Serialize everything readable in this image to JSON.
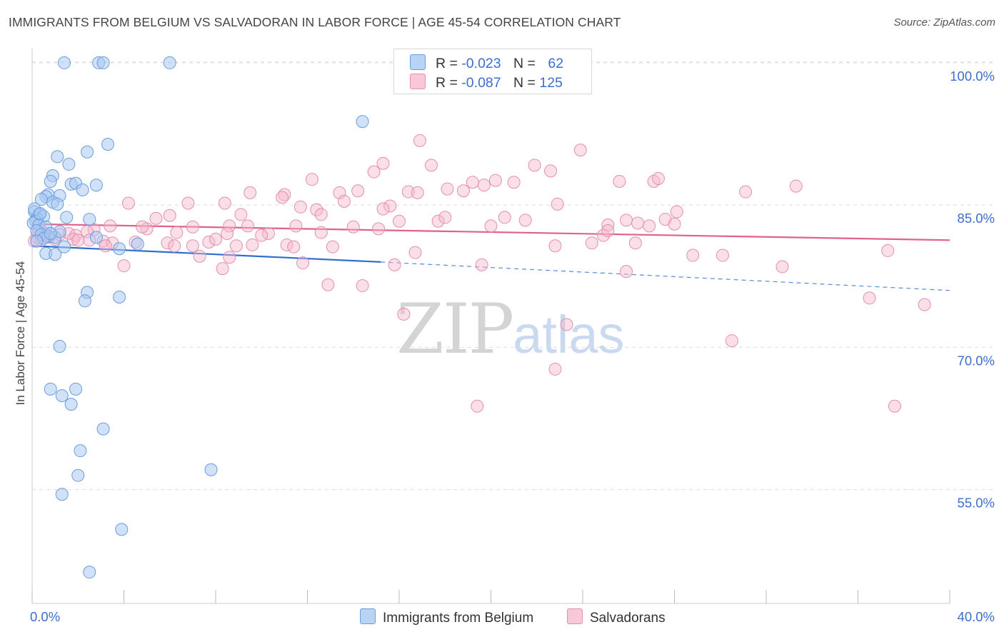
{
  "header": {
    "title": "IMMIGRANTS FROM BELGIUM VS SALVADORAN IN LABOR FORCE | AGE 45-54 CORRELATION CHART",
    "source": "Source: ZipAtlas.com"
  },
  "legend": {
    "rows": [
      {
        "r_label": "R =",
        "r_value": "-0.023",
        "n_label": "N =",
        "n_value": "62"
      },
      {
        "r_label": "R =",
        "r_value": "-0.087",
        "n_label": "N =",
        "n_value": "125"
      }
    ]
  },
  "watermark": {
    "zip": "ZIP",
    "atlas": "atlas"
  },
  "colors": {
    "blue_fill": "#a9c8f2",
    "blue_stroke": "#6a9de0",
    "blue_line": "#2d6fcf",
    "pink_fill": "#f5b8cd",
    "pink_stroke": "#e58fae",
    "pink_line": "#e0608e",
    "tick_label": "#3b6fd0",
    "grid": "#dddddd"
  },
  "chart_data": {
    "type": "scatter",
    "title": "IMMIGRANTS FROM BELGIUM VS SALVADORAN IN LABOR FORCE | AGE 45-54 CORRELATION CHART",
    "xlabel": "",
    "ylabel": "In Labor Force | Age 45-54",
    "xlim": [
      0,
      40
    ],
    "ylim": [
      43,
      101.5
    ],
    "x_tick_labels": [
      "0.0%",
      "40.0%"
    ],
    "y_ticks": [
      55,
      70,
      85,
      100
    ],
    "y_tick_labels": [
      "55.0%",
      "70.0%",
      "85.0%",
      "100.0%"
    ],
    "grid": true,
    "legend_position": "top-center",
    "series": [
      {
        "name": "Immigrants from Belgium",
        "color": "#a9c8f2",
        "trend": {
          "x0": 0,
          "y0": 80.7,
          "x1": 15.2,
          "y1": 79.0,
          "dashed_to_x": 40,
          "dashed_to_y": 76.0
        },
        "points": [
          [
            1.4,
            100
          ],
          [
            2.9,
            100
          ],
          [
            3.1,
            100
          ],
          [
            6.0,
            100
          ],
          [
            14.4,
            93.8
          ],
          [
            3.3,
            91.4
          ],
          [
            2.4,
            90.6
          ],
          [
            1.1,
            90.1
          ],
          [
            1.6,
            89.3
          ],
          [
            0.9,
            88.1
          ],
          [
            0.8,
            87.5
          ],
          [
            1.7,
            87.2
          ],
          [
            1.9,
            87.3
          ],
          [
            2.8,
            87.1
          ],
          [
            2.2,
            86.6
          ],
          [
            0.7,
            86.1
          ],
          [
            0.6,
            85.9
          ],
          [
            1.2,
            86.0
          ],
          [
            0.4,
            85.6
          ],
          [
            0.9,
            85.3
          ],
          [
            1.1,
            85.1
          ],
          [
            0.1,
            84.3
          ],
          [
            0.3,
            84.0
          ],
          [
            0.5,
            83.8
          ],
          [
            0.2,
            83.6
          ],
          [
            1.5,
            83.7
          ],
          [
            0.15,
            83.3
          ],
          [
            0.05,
            83.1
          ],
          [
            2.5,
            83.5
          ],
          [
            0.3,
            82.9
          ],
          [
            0.6,
            82.7
          ],
          [
            0.2,
            82.3
          ],
          [
            0.4,
            81.9
          ],
          [
            0.7,
            81.7
          ],
          [
            0.5,
            81.5
          ],
          [
            1.0,
            81.6
          ],
          [
            2.8,
            81.6
          ],
          [
            4.6,
            80.9
          ],
          [
            1.4,
            80.6
          ],
          [
            3.8,
            80.4
          ],
          [
            0.6,
            79.9
          ],
          [
            1.0,
            79.8
          ],
          [
            2.4,
            75.8
          ],
          [
            3.8,
            75.3
          ],
          [
            2.3,
            74.9
          ],
          [
            1.2,
            70.1
          ],
          [
            0.8,
            65.6
          ],
          [
            1.9,
            65.6
          ],
          [
            1.3,
            64.9
          ],
          [
            1.7,
            64.0
          ],
          [
            3.1,
            61.4
          ],
          [
            2.1,
            59.1
          ],
          [
            7.8,
            57.1
          ],
          [
            2.0,
            56.5
          ],
          [
            1.3,
            54.5
          ],
          [
            3.9,
            50.8
          ],
          [
            2.5,
            46.3
          ],
          [
            0.1,
            84.6
          ],
          [
            0.35,
            84.1
          ],
          [
            0.2,
            81.2
          ],
          [
            1.2,
            82.2
          ],
          [
            0.8,
            82.0
          ]
        ]
      },
      {
        "name": "Salvadorans",
        "color": "#f5b8cd",
        "trend": {
          "x0": 0,
          "y0": 83.0,
          "x1": 40,
          "y1": 81.3
        },
        "points": [
          [
            16.9,
            91.8
          ],
          [
            23.9,
            90.8
          ],
          [
            15.3,
            89.4
          ],
          [
            17.4,
            89.2
          ],
          [
            21.9,
            89.2
          ],
          [
            22.6,
            88.6
          ],
          [
            14.9,
            88.5
          ],
          [
            12.2,
            87.7
          ],
          [
            19.2,
            87.4
          ],
          [
            20.2,
            87.6
          ],
          [
            21.0,
            87.4
          ],
          [
            19.7,
            87.1
          ],
          [
            18.1,
            86.7
          ],
          [
            18.8,
            86.5
          ],
          [
            13.4,
            86.3
          ],
          [
            14.2,
            86.5
          ],
          [
            11.0,
            86.1
          ],
          [
            10.9,
            85.8
          ],
          [
            9.5,
            86.3
          ],
          [
            13.6,
            85.4
          ],
          [
            16.4,
            86.4
          ],
          [
            16.8,
            86.3
          ],
          [
            25.6,
            87.5
          ],
          [
            27.1,
            87.5
          ],
          [
            27.3,
            87.8
          ],
          [
            31.1,
            86.4
          ],
          [
            33.3,
            87.0
          ],
          [
            8.4,
            85.2
          ],
          [
            4.2,
            85.2
          ],
          [
            6.8,
            85.2
          ],
          [
            15.6,
            84.9
          ],
          [
            15.3,
            84.6
          ],
          [
            11.7,
            84.8
          ],
          [
            12.4,
            84.5
          ],
          [
            22.9,
            85.1
          ],
          [
            9.1,
            84.0
          ],
          [
            6.0,
            83.9
          ],
          [
            5.4,
            83.6
          ],
          [
            12.6,
            84.0
          ],
          [
            16.0,
            83.3
          ],
          [
            17.7,
            83.3
          ],
          [
            20.6,
            83.7
          ],
          [
            21.5,
            83.4
          ],
          [
            25.9,
            83.4
          ],
          [
            26.4,
            83.1
          ],
          [
            27.6,
            83.5
          ],
          [
            26.9,
            82.8
          ],
          [
            28.0,
            83.0
          ],
          [
            28.1,
            84.3
          ],
          [
            25.1,
            82.9
          ],
          [
            20.0,
            82.8
          ],
          [
            14.0,
            82.7
          ],
          [
            11.5,
            82.8
          ],
          [
            8.6,
            82.8
          ],
          [
            7.0,
            82.7
          ],
          [
            5.0,
            82.5
          ],
          [
            3.4,
            82.8
          ],
          [
            2.7,
            82.4
          ],
          [
            2.4,
            82.2
          ],
          [
            0.8,
            82.0
          ],
          [
            1.6,
            82.0
          ],
          [
            1.9,
            81.8
          ],
          [
            0.6,
            81.8
          ],
          [
            0.2,
            81.6
          ],
          [
            1.0,
            81.4
          ],
          [
            1.8,
            81.4
          ],
          [
            2.5,
            81.3
          ],
          [
            3.1,
            81.2
          ],
          [
            3.5,
            81.0
          ],
          [
            4.5,
            81.1
          ],
          [
            6.3,
            82.1
          ],
          [
            5.9,
            81.0
          ],
          [
            4.8,
            82.7
          ],
          [
            3.2,
            80.7
          ],
          [
            6.2,
            80.7
          ],
          [
            7.0,
            80.7
          ],
          [
            7.7,
            81.1
          ],
          [
            8.0,
            81.4
          ],
          [
            8.5,
            82.0
          ],
          [
            8.9,
            80.7
          ],
          [
            9.6,
            80.8
          ],
          [
            10.3,
            82.0
          ],
          [
            10.0,
            81.8
          ],
          [
            11.1,
            80.8
          ],
          [
            11.4,
            80.6
          ],
          [
            13.1,
            80.6
          ],
          [
            15.1,
            82.5
          ],
          [
            16.7,
            80.0
          ],
          [
            12.6,
            82.1
          ],
          [
            22.8,
            80.7
          ],
          [
            24.4,
            81.0
          ],
          [
            24.9,
            81.8
          ],
          [
            25.1,
            82.3
          ],
          [
            26.3,
            81.0
          ],
          [
            8.6,
            79.5
          ],
          [
            8.3,
            78.3
          ],
          [
            11.8,
            78.9
          ],
          [
            4.0,
            78.6
          ],
          [
            15.8,
            78.7
          ],
          [
            19.6,
            78.7
          ],
          [
            28.8,
            79.7
          ],
          [
            30.1,
            79.7
          ],
          [
            32.7,
            78.5
          ],
          [
            25.9,
            78.0
          ],
          [
            12.9,
            76.6
          ],
          [
            14.4,
            76.5
          ],
          [
            36.5,
            75.2
          ],
          [
            38.9,
            74.5
          ],
          [
            16.2,
            73.5
          ],
          [
            23.3,
            72.4
          ],
          [
            30.5,
            70.7
          ],
          [
            22.8,
            67.7
          ],
          [
            19.4,
            63.8
          ],
          [
            37.6,
            63.8
          ],
          [
            37.3,
            80.2
          ],
          [
            0.1,
            81.2
          ],
          [
            0.4,
            81.3
          ],
          [
            0.3,
            82.4
          ],
          [
            1.2,
            81.9
          ],
          [
            2.0,
            81.3
          ],
          [
            0.7,
            81.6
          ],
          [
            0.5,
            82.1
          ],
          [
            7.3,
            79.6
          ],
          [
            9.4,
            82.8
          ],
          [
            18.0,
            83.7
          ]
        ]
      }
    ]
  },
  "bottom_legend": {
    "items": [
      {
        "label": "Immigrants from Belgium"
      },
      {
        "label": "Salvadorans"
      }
    ]
  }
}
